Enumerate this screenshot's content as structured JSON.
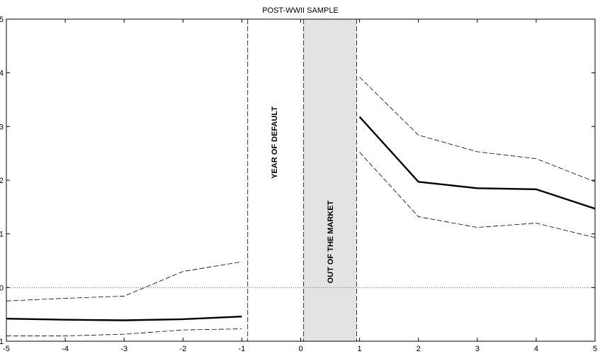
{
  "chart_data": {
    "type": "line",
    "title": "POST-WWII SAMPLE",
    "xlabel": "",
    "ylabel": "",
    "xlim": [
      -5,
      5
    ],
    "ylim": [
      -1,
      5
    ],
    "xticks": [
      -5,
      -4,
      -3,
      -2,
      -1,
      0,
      1,
      2,
      3,
      4,
      5
    ],
    "yticks": [
      -1,
      0,
      1,
      2,
      3,
      4,
      5
    ],
    "zero_line": "dotted",
    "vertical_lines": [
      -0.9,
      0.05,
      0.95
    ],
    "shaded_region": {
      "x": [
        0.05,
        0.95
      ],
      "color": "#e3e3e3"
    },
    "annotations": [
      {
        "text": "YEAR OF DEFAULT",
        "x": -0.45,
        "y": 2.7
      },
      {
        "text": "OUT OF THE MARKET",
        "x": 0.5,
        "y": 0.85
      }
    ],
    "series": [
      {
        "style": "solid-thick",
        "segments": [
          {
            "x": [
              -5,
              -4,
              -3,
              -2,
              -1
            ],
            "y": [
              -0.58,
              -0.6,
              -0.61,
              -0.59,
              -0.54
            ]
          },
          {
            "x": [
              1,
              2,
              3,
              4,
              5
            ],
            "y": [
              3.18,
              1.97,
              1.85,
              1.83,
              1.47
            ]
          }
        ]
      },
      {
        "style": "dashed",
        "segments": [
          {
            "x": [
              -5,
              -4,
              -3,
              -2,
              -1
            ],
            "y": [
              -0.25,
              -0.2,
              -0.16,
              0.3,
              0.48
            ]
          },
          {
            "x": [
              1,
              2,
              3,
              4,
              5
            ],
            "y": [
              3.92,
              2.84,
              2.53,
              2.4,
              1.97
            ]
          }
        ]
      },
      {
        "style": "dashed",
        "segments": [
          {
            "x": [
              -5,
              -4,
              -3,
              -2,
              -1
            ],
            "y": [
              -0.9,
              -0.9,
              -0.87,
              -0.79,
              -0.77
            ]
          },
          {
            "x": [
              1,
              2,
              3,
              4,
              5
            ],
            "y": [
              2.52,
              1.32,
              1.12,
              1.2,
              0.93
            ]
          }
        ]
      }
    ]
  }
}
